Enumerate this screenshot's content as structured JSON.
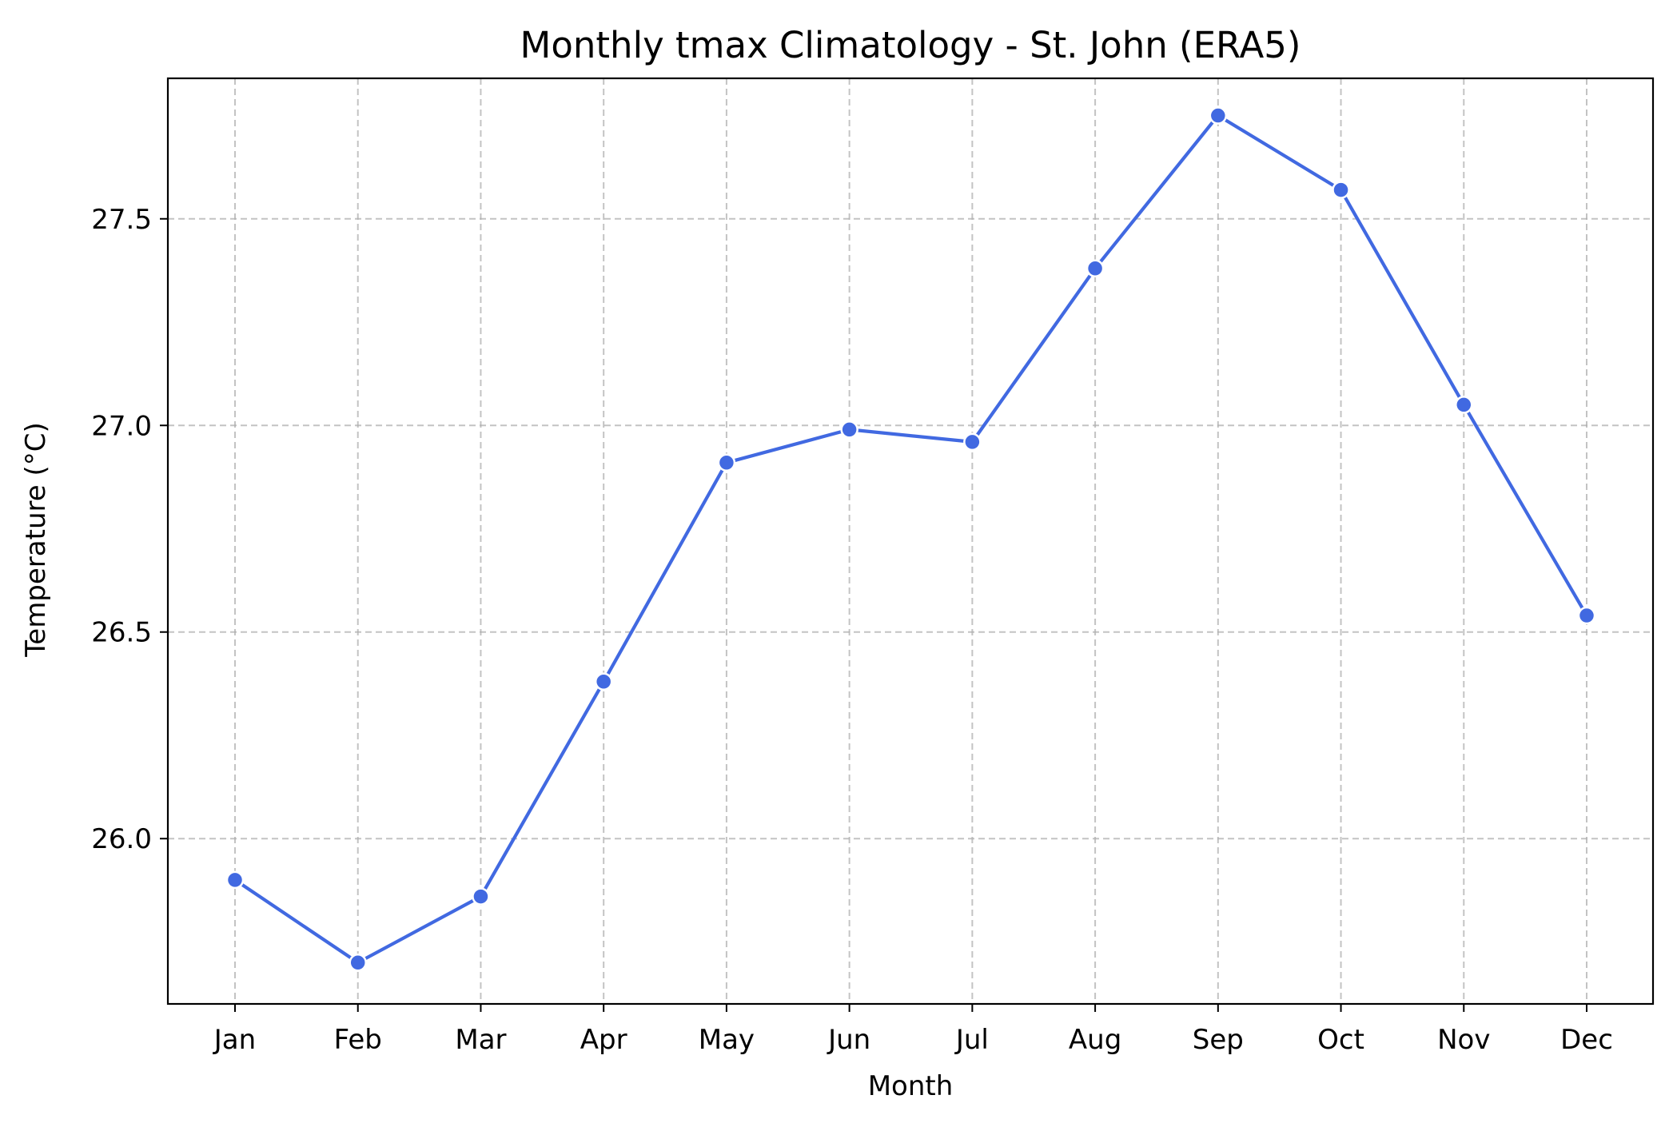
{
  "chart_data": {
    "type": "line",
    "title": "Monthly tmax Climatology - St. John (ERA5)",
    "xlabel": "Month",
    "ylabel": "Temperature (°C)",
    "categories": [
      "Jan",
      "Feb",
      "Mar",
      "Apr",
      "May",
      "Jun",
      "Jul",
      "Aug",
      "Sep",
      "Oct",
      "Nov",
      "Dec"
    ],
    "series": [
      {
        "values": [
          25.9,
          25.7,
          25.86,
          26.38,
          26.91,
          26.99,
          26.96,
          27.38,
          27.75,
          27.57,
          27.05,
          26.54
        ],
        "color": "#4169E1",
        "marker": "circle"
      }
    ],
    "ylim": [
      25.6,
      27.84
    ],
    "yticks": [
      26.0,
      26.5,
      27.0,
      27.5
    ],
    "ytick_labels": [
      "26.0",
      "26.5",
      "27.0",
      "27.5"
    ],
    "grid": true,
    "legend": "none"
  }
}
